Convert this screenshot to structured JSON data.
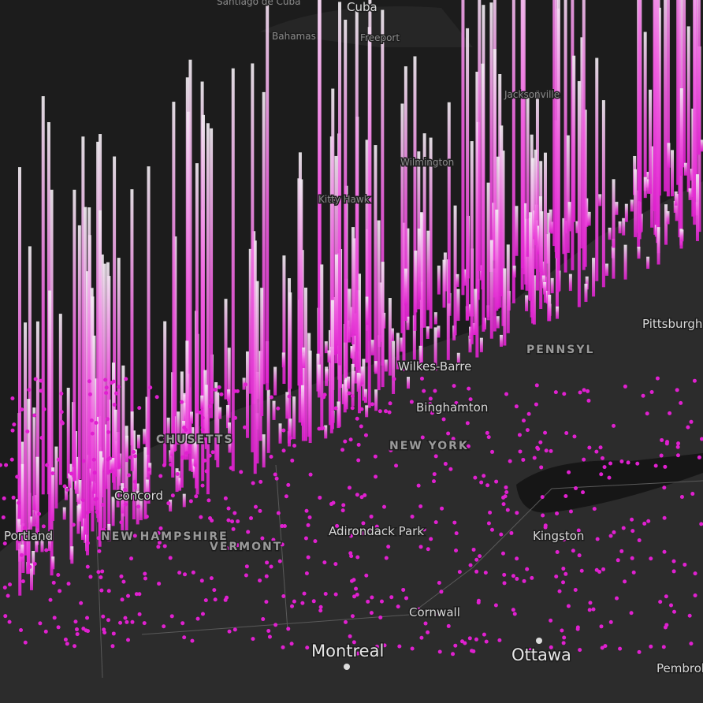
{
  "map": {
    "labels": [
      "Santiago de Cuba",
      "Cuba",
      "Bahamas",
      "Freeport",
      "Kitty Hawk",
      "Wilkes-Barre",
      "Binghamton",
      "NEW YORK",
      "CHUSETTS",
      "Concord",
      "NEW HAMPSHIRE",
      "Portland",
      "VERMONT",
      "Adirondack Park",
      "Kingston",
      "Cornwall",
      "Montreal",
      "Ottawa",
      "Pembroke",
      "PENNSYL",
      "Pittsburgh",
      "Jacksonville",
      "Wilmington"
    ]
  }
}
